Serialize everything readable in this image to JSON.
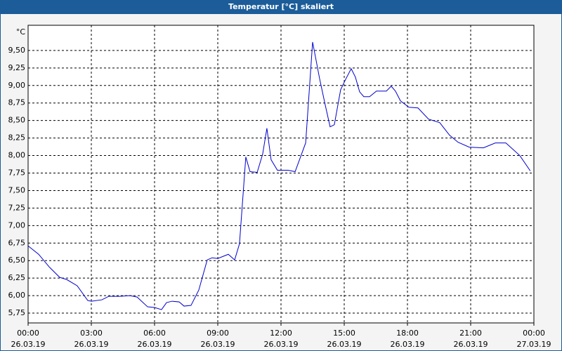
{
  "chart_data": {
    "type": "line",
    "title": "Temperatur [°C] skaliert",
    "y_unit": "°C",
    "x": [
      0,
      0.5,
      1,
      1.5,
      1.83,
      2.33,
      2.83,
      3.0,
      3.5,
      3.83,
      4.33,
      4.83,
      5.17,
      5.67,
      6.0,
      6.33,
      6.57,
      6.83,
      7.17,
      7.4,
      7.73,
      8.1,
      8.5,
      8.73,
      9.0,
      9.5,
      9.8,
      10.03,
      10.33,
      10.53,
      10.87,
      11.13,
      11.33,
      11.53,
      11.83,
      12.33,
      12.67,
      13.17,
      13.5,
      13.83,
      14.1,
      14.33,
      14.53,
      14.83,
      15.07,
      15.33,
      15.53,
      15.73,
      15.93,
      16.2,
      16.53,
      17.0,
      17.23,
      17.43,
      17.67,
      18.07,
      18.5,
      19.0,
      19.53,
      20.0,
      20.4,
      20.93,
      21.6,
      22.17,
      22.67,
      23.33,
      23.83
    ],
    "series": [
      {
        "color": "#0000cc",
        "values": [
          6.71,
          6.59,
          6.41,
          6.26,
          6.23,
          6.14,
          5.93,
          5.92,
          5.94,
          5.99,
          5.99,
          6.0,
          5.98,
          5.84,
          5.83,
          5.8,
          5.9,
          5.92,
          5.91,
          5.85,
          5.86,
          6.08,
          6.51,
          6.54,
          6.53,
          6.59,
          6.51,
          6.74,
          7.98,
          7.77,
          7.76,
          8.02,
          8.39,
          7.94,
          7.79,
          7.79,
          7.77,
          8.18,
          9.62,
          9.1,
          8.72,
          8.41,
          8.44,
          8.94,
          9.09,
          9.24,
          9.12,
          8.91,
          8.84,
          8.84,
          8.92,
          8.92,
          8.99,
          8.92,
          8.78,
          8.69,
          8.68,
          8.52,
          8.47,
          8.29,
          8.19,
          8.12,
          8.11,
          8.18,
          8.18,
          8.0,
          7.78
        ]
      }
    ],
    "xlim": [
      0,
      24
    ],
    "xticks": [
      {
        "value": 0,
        "label": "00:00\n26.03.19"
      },
      {
        "value": 3,
        "label": "03:00\n26.03.19"
      },
      {
        "value": 6,
        "label": "06:00\n26.03.19"
      },
      {
        "value": 9,
        "label": "09:00\n26.03.19"
      },
      {
        "value": 12,
        "label": "12:00\n26.03.19"
      },
      {
        "value": 15,
        "label": "15:00\n26.03.19"
      },
      {
        "value": 18,
        "label": "18:00\n26.03.19"
      },
      {
        "value": 21,
        "label": "21:00\n26.03.19"
      },
      {
        "value": 24,
        "label": "00:00\n27.03.19"
      }
    ],
    "ylim": [
      5.61,
      9.86
    ],
    "yticks": [
      {
        "value": 5.75,
        "label": "5,75"
      },
      {
        "value": 6,
        "label": "6,00"
      },
      {
        "value": 6.25,
        "label": "6,25"
      },
      {
        "value": 6.5,
        "label": "6,50"
      },
      {
        "value": 6.75,
        "label": "6,75"
      },
      {
        "value": 7,
        "label": "7,00"
      },
      {
        "value": 7.25,
        "label": "7,25"
      },
      {
        "value": 7.5,
        "label": "7,50"
      },
      {
        "value": 7.75,
        "label": "7,75"
      },
      {
        "value": 8,
        "label": "8,00"
      },
      {
        "value": 8.25,
        "label": "8,25"
      },
      {
        "value": 8.5,
        "label": "8,50"
      },
      {
        "value": 8.75,
        "label": "8,75"
      },
      {
        "value": 9,
        "label": "9,00"
      },
      {
        "value": 9.25,
        "label": "9,25"
      },
      {
        "value": 9.5,
        "label": "9,50"
      }
    ],
    "grid": true
  }
}
